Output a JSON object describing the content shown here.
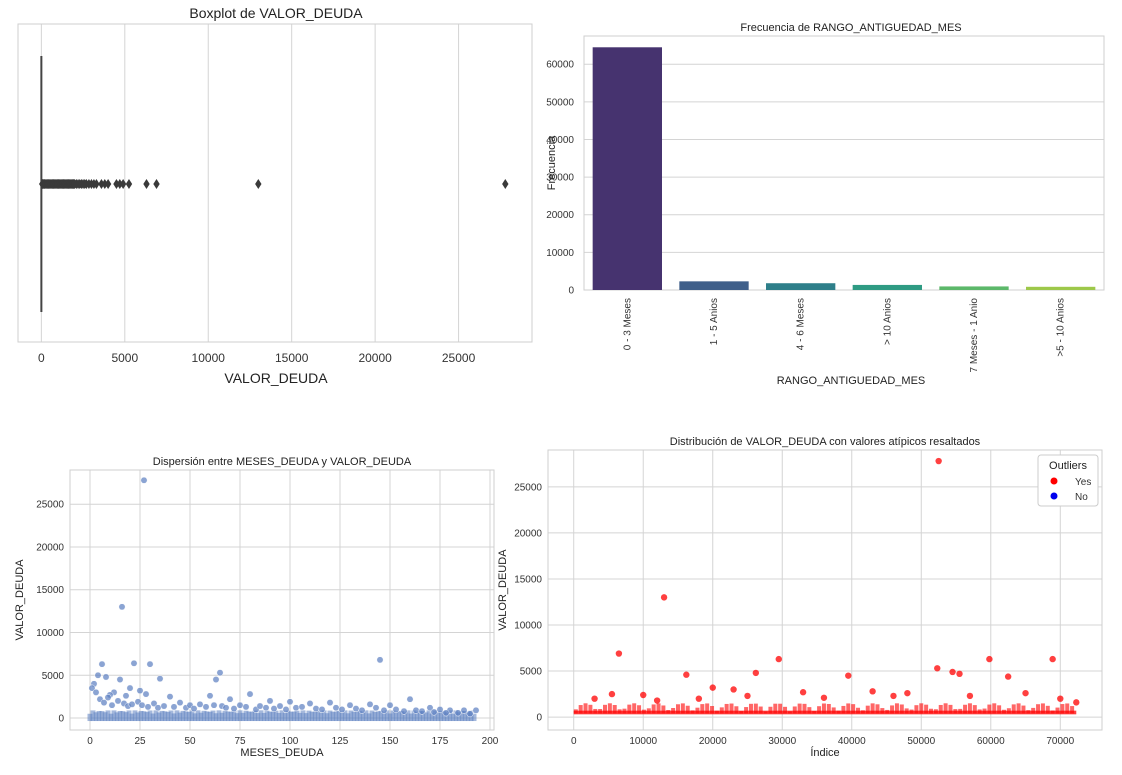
{
  "chart_data": [
    {
      "type": "box",
      "title": "Boxplot de VALOR_DEUDA",
      "xlabel": "VALOR_DEUDA",
      "xlim": [
        -1400,
        29400
      ],
      "xticks": [
        0,
        5000,
        10000,
        15000,
        20000,
        25000
      ],
      "box": {
        "whisker_low": 0,
        "q1": 0,
        "median": 0,
        "q3": 0,
        "whisker_high": 0
      },
      "outliers": [
        50,
        80,
        120,
        160,
        200,
        250,
        300,
        350,
        400,
        450,
        500,
        550,
        600,
        650,
        700,
        750,
        800,
        850,
        900,
        950,
        1000,
        1050,
        1100,
        1150,
        1200,
        1250,
        1300,
        1350,
        1400,
        1450,
        1500,
        1550,
        1600,
        1650,
        1700,
        1750,
        1800,
        1850,
        1900,
        1950,
        2000,
        2100,
        2200,
        2300,
        2400,
        2500,
        2600,
        2700,
        2850,
        3000,
        3150,
        3300,
        3600,
        3800,
        4000,
        4500,
        4700,
        4900,
        5250,
        6300,
        6900,
        13000,
        27800
      ]
    },
    {
      "type": "bar",
      "title": "Frecuencia de RANGO_ANTIGUEDAD_MES",
      "xlabel": "RANGO_ANTIGUEDAD_MES",
      "ylabel": "Frecuencia",
      "ylim": [
        0,
        67500
      ],
      "yticks": [
        0,
        10000,
        20000,
        30000,
        40000,
        50000,
        60000
      ],
      "categories": [
        "0 - 3 Meses",
        "1 - 5 Anios",
        "4 - 6 Meses",
        "> 10 Anios",
        "7 Meses - 1 Anio",
        ">5 - 10 Anios"
      ],
      "values": [
        64500,
        2300,
        1800,
        1350,
        950,
        850
      ],
      "colors": [
        "#46336f",
        "#3f5f8a",
        "#2e7f8a",
        "#2e9b83",
        "#5cb86a",
        "#9dc84a"
      ]
    },
    {
      "type": "scatter",
      "title": "Dispersión entre MESES_DEUDA y VALOR_DEUDA",
      "xlabel": "MESES_DEUDA",
      "ylabel": "VALOR_DEUDA",
      "xlim": [
        -10,
        202
      ],
      "ylim": [
        -1400,
        29000
      ],
      "xticks": [
        0,
        25,
        50,
        75,
        100,
        125,
        150,
        175,
        200
      ],
      "yticks": [
        0,
        5000,
        10000,
        15000,
        20000,
        25000
      ],
      "color": "#5a7ec0",
      "points": [
        [
          27,
          27800
        ],
        [
          16,
          13000
        ],
        [
          145,
          6800
        ],
        [
          6,
          6300
        ],
        [
          22,
          6400
        ],
        [
          30,
          6300
        ],
        [
          4,
          5000
        ],
        [
          8,
          4800
        ],
        [
          15,
          4500
        ],
        [
          35,
          4600
        ],
        [
          65,
          5300
        ],
        [
          63,
          4500
        ],
        [
          2,
          4000
        ],
        [
          1,
          3500
        ],
        [
          3,
          3000
        ],
        [
          20,
          3500
        ],
        [
          12,
          3000
        ],
        [
          25,
          3200
        ],
        [
          10,
          2700
        ],
        [
          18,
          2600
        ],
        [
          28,
          2800
        ],
        [
          40,
          2500
        ],
        [
          60,
          2600
        ],
        [
          70,
          2200
        ],
        [
          80,
          2800
        ],
        [
          90,
          2000
        ],
        [
          100,
          1900
        ],
        [
          110,
          1700
        ],
        [
          120,
          1800
        ],
        [
          130,
          1500
        ],
        [
          140,
          1600
        ],
        [
          150,
          1500
        ],
        [
          160,
          2200
        ],
        [
          170,
          1200
        ],
        [
          175,
          1000
        ],
        [
          180,
          900
        ],
        [
          187,
          900
        ],
        [
          193,
          900
        ],
        [
          5,
          2200
        ],
        [
          7,
          1800
        ],
        [
          9,
          2400
        ],
        [
          11,
          1500
        ],
        [
          14,
          2000
        ],
        [
          17,
          1700
        ],
        [
          19,
          1400
        ],
        [
          21,
          1600
        ],
        [
          24,
          1900
        ],
        [
          26,
          1500
        ],
        [
          29,
          1300
        ],
        [
          32,
          1700
        ],
        [
          34,
          1200
        ],
        [
          37,
          1400
        ],
        [
          42,
          1300
        ],
        [
          45,
          1800
        ],
        [
          48,
          1200
        ],
        [
          50,
          1500
        ],
        [
          52,
          1100
        ],
        [
          55,
          1600
        ],
        [
          58,
          1300
        ],
        [
          62,
          1500
        ],
        [
          66,
          1400
        ],
        [
          68,
          1200
        ],
        [
          72,
          1100
        ],
        [
          75,
          1500
        ],
        [
          78,
          1300
        ],
        [
          83,
          1000
        ],
        [
          85,
          1400
        ],
        [
          88,
          1200
        ],
        [
          92,
          1100
        ],
        [
          95,
          1400
        ],
        [
          98,
          1000
        ],
        [
          103,
          1200
        ],
        [
          106,
          1300
        ],
        [
          113,
          1100
        ],
        [
          116,
          1000
        ],
        [
          123,
          1200
        ],
        [
          126,
          1000
        ],
        [
          133,
          1100
        ],
        [
          136,
          900
        ],
        [
          143,
          1200
        ],
        [
          147,
          900
        ],
        [
          153,
          1000
        ],
        [
          157,
          800
        ],
        [
          163,
          900
        ],
        [
          166,
          800
        ],
        [
          172,
          700
        ],
        [
          178,
          600
        ],
        [
          184,
          600
        ],
        [
          190,
          500
        ]
      ]
    },
    {
      "type": "scatter",
      "title": "Distribución de VALOR_DEUDA con valores atípicos resaltados",
      "xlabel": "Índice",
      "ylabel": "VALOR_DEUDA",
      "xlim": [
        -3700,
        76000
      ],
      "ylim": [
        -1400,
        29000
      ],
      "xticks": [
        0,
        10000,
        20000,
        30000,
        40000,
        50000,
        60000,
        70000
      ],
      "yticks": [
        0,
        5000,
        10000,
        15000,
        20000,
        25000
      ],
      "legend": {
        "title": "Outliers",
        "position": "top-right",
        "entries": [
          {
            "label": "Yes",
            "color": "#ff0000"
          },
          {
            "label": "No",
            "color": "#0000ee"
          }
        ]
      },
      "series": [
        {
          "name": "Yes",
          "color": "#ff0000",
          "points": [
            [
              52500,
              27800
            ],
            [
              13000,
              13000
            ],
            [
              6500,
              6900
            ],
            [
              29500,
              6300
            ],
            [
              59800,
              6300
            ],
            [
              68900,
              6300
            ],
            [
              52300,
              5300
            ],
            [
              54500,
              4900
            ],
            [
              55500,
              4700
            ],
            [
              16200,
              4600
            ],
            [
              26200,
              4800
            ],
            [
              39500,
              4500
            ],
            [
              62500,
              4400
            ],
            [
              5500,
              2500
            ],
            [
              10000,
              2400
            ],
            [
              20000,
              3200
            ],
            [
              23000,
              3000
            ],
            [
              33000,
              2700
            ],
            [
              43000,
              2800
            ],
            [
              48000,
              2600
            ],
            [
              65000,
              2600
            ],
            [
              3000,
              2000
            ],
            [
              12000,
              1800
            ],
            [
              18000,
              2000
            ],
            [
              25000,
              2300
            ],
            [
              36000,
              2100
            ],
            [
              46000,
              2300
            ],
            [
              57000,
              2300
            ],
            [
              70000,
              2000
            ],
            [
              72300,
              1600
            ]
          ]
        }
      ]
    }
  ]
}
